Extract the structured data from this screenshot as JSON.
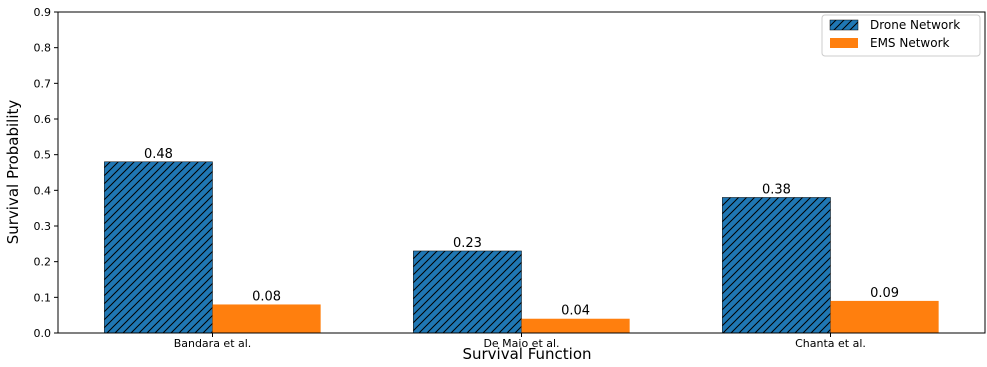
{
  "chart_data": {
    "type": "bar",
    "title": "",
    "xlabel": "Survival Function",
    "ylabel": "Survival Probability",
    "categories": [
      "Bandara et al.",
      "De Maio et al.",
      "Chanta et al."
    ],
    "series": [
      {
        "name": "Drone Network",
        "values": [
          0.48,
          0.23,
          0.38
        ],
        "value_labels": [
          "0.48",
          "0.23",
          "0.38"
        ],
        "color": "#1f77b4",
        "hatch": "diagonal"
      },
      {
        "name": "EMS Network",
        "values": [
          0.08,
          0.04,
          0.09
        ],
        "value_labels": [
          "0.08",
          "0.04",
          "0.09"
        ],
        "color": "#ff7f0e",
        "hatch": "none"
      }
    ],
    "ylim": [
      0,
      0.9
    ],
    "yticks": [
      0.0,
      0.1,
      0.2,
      0.3,
      0.4,
      0.5,
      0.6,
      0.7,
      0.8,
      0.9
    ],
    "ytick_labels": [
      "0.0",
      "0.1",
      "0.2",
      "0.3",
      "0.4",
      "0.5",
      "0.6",
      "0.7",
      "0.8",
      "0.9"
    ],
    "grid": false,
    "legend_position": "top-right"
  }
}
